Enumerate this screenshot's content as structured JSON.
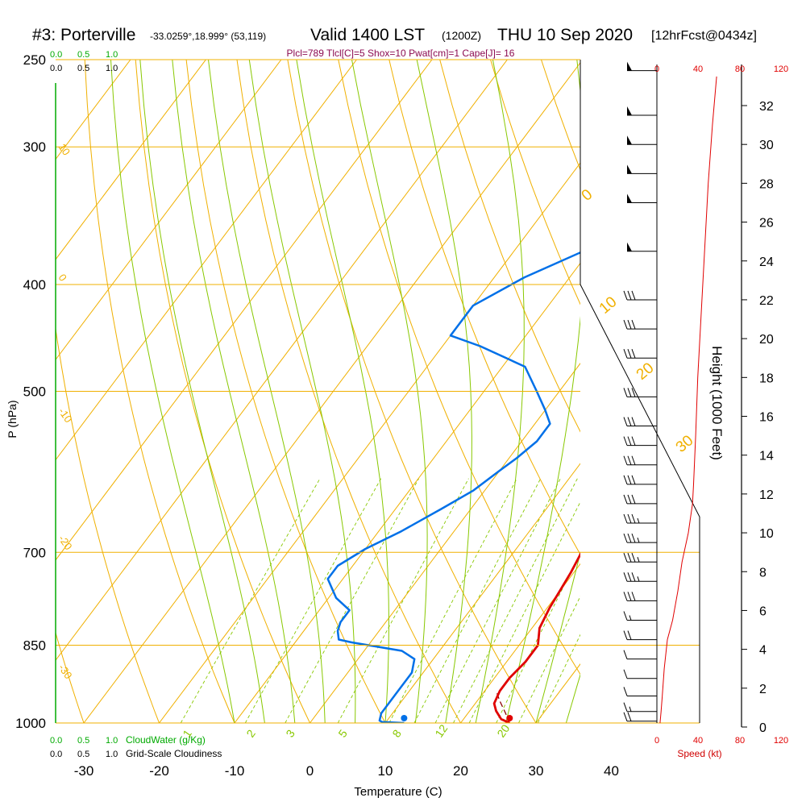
{
  "header": {
    "station": "#3: Porterville",
    "coords": "-33.0259°,18.999° (53,119)",
    "valid": "Valid 1400 LST",
    "utc": "(1200Z)",
    "date": "THU 10 Sep 2020",
    "forecast": "[12hrFcst@0434z]"
  },
  "chart_data": [
    {
      "type": "line",
      "title": "Plcl=789 Tlcl[C]=5 Shox=10 Pwat[cm]=1 Cape[J]= 16",
      "xlabel": "Temperature (C)",
      "ylabel": "P (hPa)",
      "x_ticks": [
        "-30",
        "-20",
        "-10",
        "0",
        "10",
        "20",
        "30",
        "40"
      ],
      "y_ticks": [
        "250",
        "300",
        "400",
        "500",
        "700",
        "850",
        "1000"
      ],
      "cloud_axis_labels": [
        "0.0",
        "0.5",
        "1.0"
      ],
      "cloudwater_label": "CloudWater (g/Kg)",
      "cloudiness_label": "Grid-Scale Cloudiness",
      "isotherm_labels": [
        "10",
        "0",
        "-10",
        "-20",
        "-30"
      ],
      "mixing_ratio_labels": [
        "1",
        "2",
        "3",
        "5",
        "8",
        "12",
        "20"
      ],
      "adiabat_labels": [
        "0",
        "10",
        "20",
        "30"
      ],
      "colors": {
        "isobar": "#f0b000",
        "isotherm": "#f0b000",
        "dry_adiabat": "#f0b000",
        "moist_adiabat": "#88c800",
        "mixing_ratio": "#88c800",
        "temperature": "#e00000",
        "dewpoint": "#0070e8",
        "cloud": "#00aa00",
        "wind_speed": "#e00000"
      },
      "series": [
        {
          "name": "Temperature",
          "points": [
            [
              26.5,
              1000
            ],
            [
              25,
              992
            ],
            [
              23.5,
              975
            ],
            [
              22.5,
              960
            ],
            [
              22,
              935
            ],
            [
              22,
              910
            ],
            [
              22.5,
              880
            ],
            [
              22.5,
              850
            ],
            [
              21,
              820
            ],
            [
              20.3,
              785
            ],
            [
              20,
              760
            ],
            [
              19.6,
              730
            ],
            [
              19,
              700
            ],
            [
              17.5,
              665
            ],
            [
              15.5,
              625
            ],
            [
              13.5,
              585
            ],
            [
              11.5,
              555
            ],
            [
              10,
              520
            ],
            [
              9,
              480
            ],
            [
              8.2,
              440
            ],
            [
              7.5,
              420
            ],
            [
              5.5,
              395
            ],
            [
              3.5,
              375
            ],
            [
              1,
              355
            ],
            [
              -1.5,
              335
            ],
            [
              -4,
              312
            ],
            [
              -6.5,
              292
            ],
            [
              -8.5,
              270
            ]
          ]
        },
        {
          "name": "Dewpoint",
          "points": [
            [
              12.5,
              1000
            ],
            [
              9.5,
              998
            ],
            [
              9,
              995
            ],
            [
              8.5,
              980
            ],
            [
              8.5,
              930
            ],
            [
              8.5,
              900
            ],
            [
              7.5,
              875
            ],
            [
              5,
              860
            ],
            [
              0,
              850
            ],
            [
              -2.5,
              845
            ],
            [
              -4.5,
              840
            ],
            [
              -5.5,
              825
            ],
            [
              -6,
              810
            ],
            [
              -6,
              790
            ],
            [
              -9,
              770
            ],
            [
              -12,
              740
            ],
            [
              -12,
              720
            ],
            [
              -10,
              695
            ],
            [
              -7,
              670
            ],
            [
              -4,
              640
            ],
            [
              -1.5,
              615
            ],
            [
              0,
              590
            ],
            [
              1,
              575
            ],
            [
              2,
              555
            ],
            [
              2,
              535
            ],
            [
              0,
              520
            ],
            [
              -3,
              500
            ],
            [
              -7,
              475
            ],
            [
              -15,
              455
            ],
            [
              -20,
              445
            ],
            [
              -20,
              418
            ],
            [
              -16,
              394
            ],
            [
              -10,
              370
            ],
            [
              -5,
              348
            ],
            [
              -4,
              330
            ],
            [
              -4,
              308
            ],
            [
              -8,
              300
            ],
            [
              -9.5,
              285
            ],
            [
              -11,
              265
            ]
          ]
        },
        {
          "name": "Parcel",
          "points": [
            [
              26.5,
              1000
            ],
            [
              25,
              980
            ],
            [
              23,
              955
            ],
            [
              21.5,
              935
            ]
          ]
        }
      ],
      "surface_points": {
        "temperature": [
          26.5,
          1000
        ],
        "dewpoint": [
          12.5,
          1000
        ]
      },
      "height_axis": {
        "label": "Height (1000 Feet)",
        "ticks": [
          "0",
          "2",
          "4",
          "6",
          "8",
          "10",
          "12",
          "14",
          "16",
          "18",
          "20",
          "22",
          "24",
          "26",
          "28",
          "30",
          "32"
        ],
        "speed_ticks": [
          "0",
          "40",
          "80",
          "120"
        ],
        "speed_label": "Speed (kt)"
      },
      "wind_speed_profile": {
        "points": [
          [
            3,
            0.2
          ],
          [
            4,
            0.8
          ],
          [
            5,
            1.5
          ],
          [
            7,
            3
          ],
          [
            10,
            4.5
          ],
          [
            15,
            5.5
          ],
          [
            20,
            7
          ],
          [
            24,
            8.5
          ],
          [
            30,
            10
          ],
          [
            34,
            11.5
          ],
          [
            35,
            12.5
          ],
          [
            37,
            15
          ],
          [
            39,
            18
          ],
          [
            42,
            21
          ],
          [
            45,
            24
          ],
          [
            49,
            28
          ],
          [
            53,
            31
          ],
          [
            57,
            33.5
          ]
        ]
      },
      "wind_barbs": [
        {
          "height": 0.3,
          "speed": 20
        },
        {
          "height": 0.8,
          "speed": 15
        },
        {
          "height": 1.6,
          "speed": 10
        },
        {
          "height": 2.5,
          "speed": 10
        },
        {
          "height": 3.5,
          "speed": 10
        },
        {
          "height": 4.5,
          "speed": 20
        },
        {
          "height": 5.5,
          "speed": 15
        },
        {
          "height": 6.5,
          "speed": 30
        },
        {
          "height": 7.5,
          "speed": 35
        },
        {
          "height": 8.5,
          "speed": 35
        },
        {
          "height": 9.5,
          "speed": 35
        },
        {
          "height": 10.5,
          "speed": 35
        },
        {
          "height": 11.5,
          "speed": 30
        },
        {
          "height": 12.5,
          "speed": 30
        },
        {
          "height": 13.5,
          "speed": 30
        },
        {
          "height": 14.5,
          "speed": 30
        },
        {
          "height": 15.5,
          "speed": 30
        },
        {
          "height": 17,
          "speed": 30
        },
        {
          "height": 19,
          "speed": 30
        },
        {
          "height": 20.5,
          "speed": 30
        },
        {
          "height": 22,
          "speed": 30
        },
        {
          "height": 24.5,
          "speed": 50
        },
        {
          "height": 27,
          "speed": 50
        },
        {
          "height": 28.5,
          "speed": 50
        },
        {
          "height": 30,
          "speed": 50
        },
        {
          "height": 31.5,
          "speed": 50
        },
        {
          "height": 33.8,
          "speed": 50
        }
      ]
    }
  ]
}
